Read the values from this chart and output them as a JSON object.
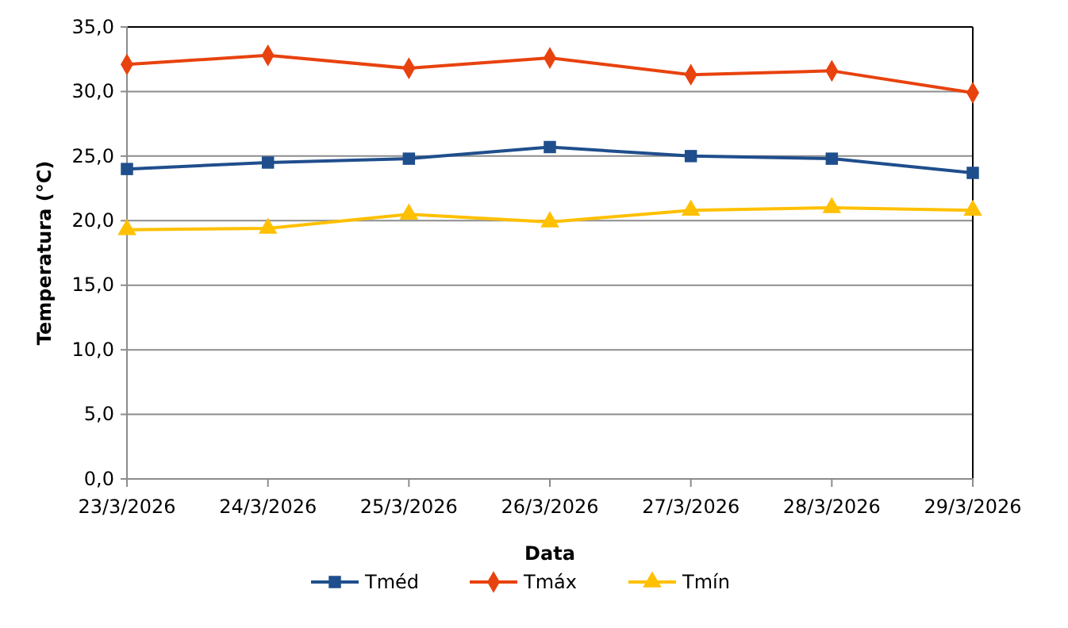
{
  "chart_data": {
    "type": "line",
    "xlabel": "Data",
    "ylabel": "Temperatura (°C)",
    "categories": [
      "23/3/2026",
      "24/3/2026",
      "25/3/2026",
      "26/3/2026",
      "27/3/2026",
      "28/3/2026",
      "29/3/2026"
    ],
    "series": [
      {
        "name": "Tméd",
        "color": "#1f4e8c",
        "marker": "square",
        "values": [
          24.0,
          24.5,
          24.8,
          25.7,
          25.0,
          24.8,
          23.7
        ]
      },
      {
        "name": "Tmáx",
        "color": "#e8420e",
        "marker": "diamond",
        "values": [
          32.1,
          32.8,
          31.8,
          32.6,
          31.3,
          31.6,
          29.9
        ]
      },
      {
        "name": "Tmín",
        "color": "#ffc000",
        "marker": "triangle",
        "values": [
          19.3,
          19.4,
          20.5,
          19.9,
          20.8,
          21.0,
          20.8
        ]
      }
    ],
    "ylim": [
      0,
      35
    ],
    "yticks": [
      {
        "value": 0,
        "label": "0,0"
      },
      {
        "value": 5,
        "label": "5,0"
      },
      {
        "value": 10,
        "label": "10,0"
      },
      {
        "value": 15,
        "label": "15,0"
      },
      {
        "value": 20,
        "label": "20,0"
      },
      {
        "value": 25,
        "label": "25,0"
      },
      {
        "value": 30,
        "label": "30,0"
      },
      {
        "value": 35,
        "label": "35,0"
      }
    ],
    "grid": "y",
    "legend": "bottom",
    "line_style": "solid"
  }
}
